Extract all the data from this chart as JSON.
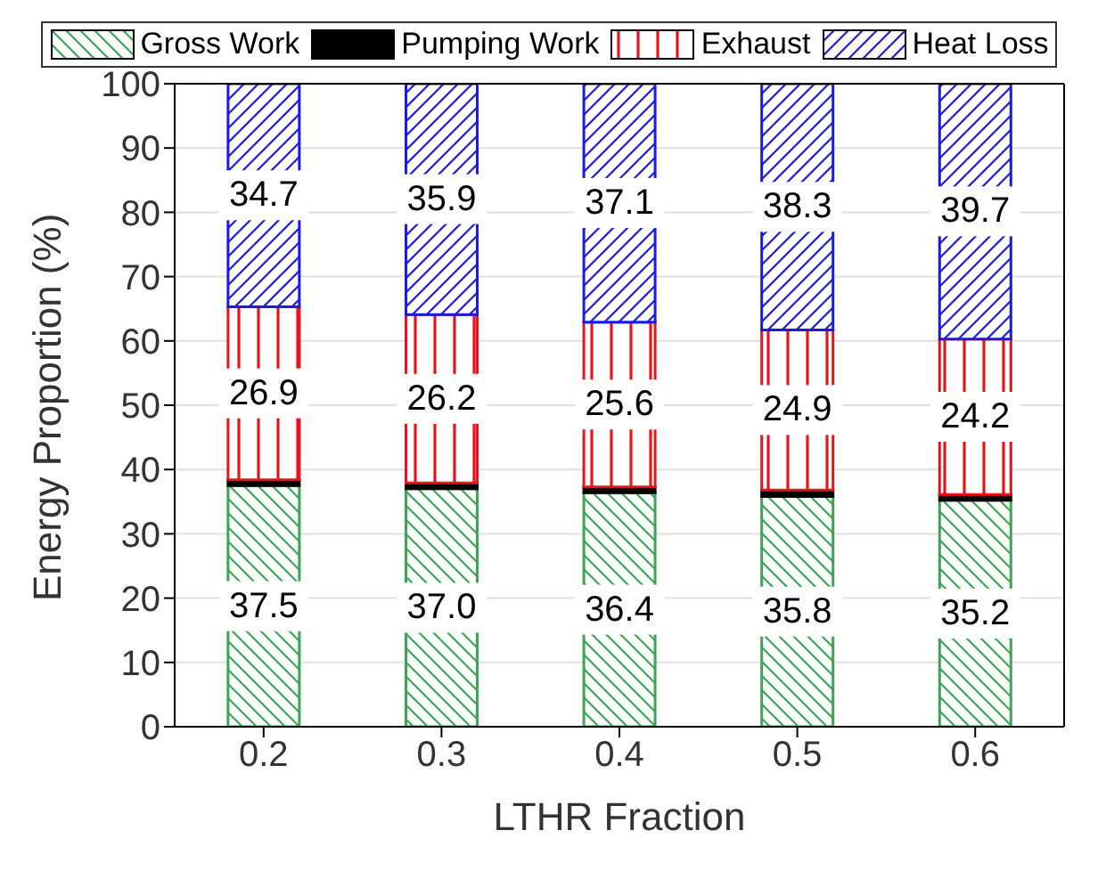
{
  "chart_data": {
    "type": "bar",
    "stacked": true,
    "xlabel": "LTHR Fraction",
    "ylabel": "Energy Proportion (%)",
    "categories": [
      "0.2",
      "0.3",
      "0.4",
      "0.5",
      "0.6"
    ],
    "series": [
      {
        "name": "Gross Work",
        "color": "#3aa655",
        "values": [
          37.5,
          37.0,
          36.4,
          35.8,
          35.2
        ],
        "value_labels": [
          "37.5",
          "37.0",
          "36.4",
          "35.8",
          "35.2"
        ]
      },
      {
        "name": "Pumping Work",
        "color": "#000000",
        "values": [
          0.9,
          0.9,
          0.9,
          1.0,
          0.9
        ]
      },
      {
        "name": "Exhaust",
        "color": "#e8141c",
        "values": [
          26.9,
          26.2,
          25.6,
          24.9,
          24.2
        ],
        "value_labels": [
          "26.9",
          "26.2",
          "25.6",
          "24.9",
          "24.2"
        ]
      },
      {
        "name": "Heat Loss",
        "color": "#1a1ae0",
        "values": [
          34.7,
          35.9,
          37.1,
          38.3,
          39.7
        ],
        "value_labels": [
          "34.7",
          "35.9",
          "37.1",
          "38.3",
          "39.7"
        ]
      }
    ],
    "ylim": [
      0,
      100
    ],
    "yticks": [
      0,
      10,
      20,
      30,
      40,
      50,
      60,
      70,
      80,
      90,
      100
    ],
    "grid": "y",
    "legend": "top"
  }
}
